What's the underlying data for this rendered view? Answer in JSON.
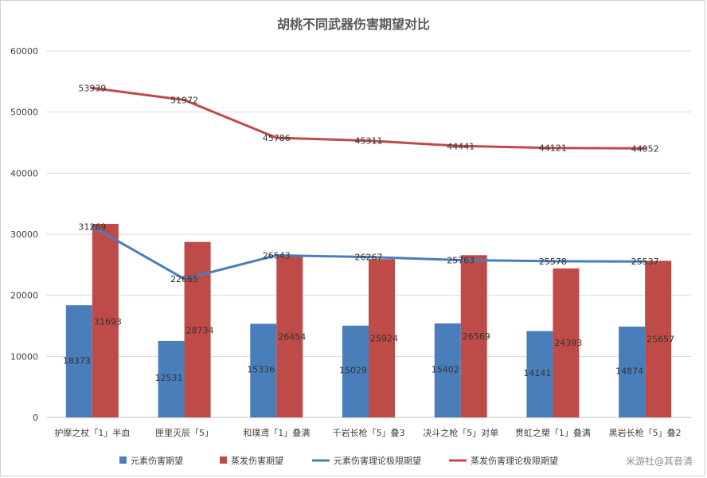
{
  "chart_data": {
    "type": "bar",
    "title": "胡桃不同武器伤害期望对比",
    "categories": [
      "护摩之杖「1」半血",
      "匣里灭辰「5」",
      "和璞鸢「1」叠满",
      "千岩长枪「5」叠3",
      "决斗之枪「5」对单",
      "贯虹之槊「1」叠满",
      "黑岩长枪「5」叠2"
    ],
    "ylim": [
      0,
      60000
    ],
    "yticks": [
      0,
      10000,
      20000,
      30000,
      40000,
      50000,
      60000
    ],
    "grid": true,
    "legend_position": "bottom",
    "series": [
      {
        "name": "元素伤害期望",
        "kind": "bar",
        "color": "#4a7ebb",
        "values": [
          18373,
          12531,
          15336,
          15029,
          15402,
          14141,
          14874
        ]
      },
      {
        "name": "蒸发伤害期望",
        "kind": "bar",
        "color": "#be4b48",
        "values": [
          31693,
          28734,
          26454,
          25924,
          26569,
          24393,
          25657
        ]
      },
      {
        "name": "元素伤害理论极限期望",
        "kind": "line",
        "color": "#4a7ebb",
        "values": [
          31269,
          22665,
          26543,
          26267,
          25763,
          25578,
          25537
        ]
      },
      {
        "name": "蒸发伤害理论极限期望",
        "kind": "line",
        "color": "#be4b48",
        "values": [
          53939,
          51972,
          45786,
          45311,
          44441,
          44121,
          44052
        ]
      }
    ]
  },
  "watermark": "米游社@其音清"
}
